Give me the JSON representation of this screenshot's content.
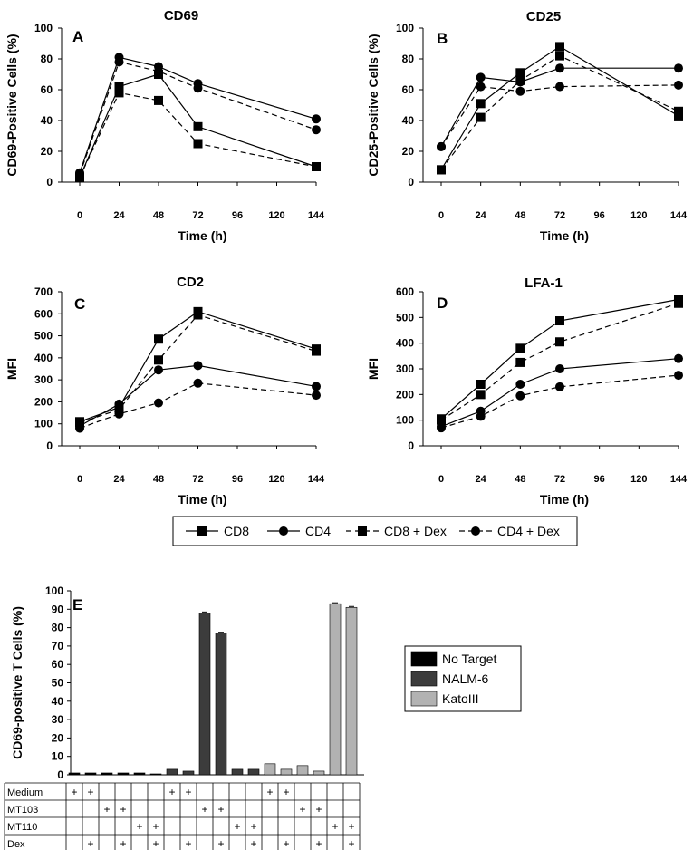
{
  "chart_data": [
    {
      "panel": "A",
      "type": "line",
      "title": "CD69",
      "xlabel": "Time (h)",
      "ylabel": "CD69-Positive Cells (%)",
      "x_ticks": [
        "0",
        "24",
        "48",
        "72",
        "96",
        "120",
        "144"
      ],
      "y_ticks": [
        "0",
        "20",
        "40",
        "60",
        "80",
        "100"
      ],
      "xlim": [
        0,
        144
      ],
      "ylim": [
        0,
        100
      ],
      "x": [
        0,
        24,
        48,
        72,
        144
      ],
      "series": [
        {
          "name": "CD8",
          "marker": "square",
          "dash": false,
          "values": [
            3,
            62,
            70,
            36,
            10
          ]
        },
        {
          "name": "CD4",
          "marker": "circle",
          "dash": false,
          "values": [
            6,
            81,
            75,
            64,
            41
          ]
        },
        {
          "name": "CD8 + Dex",
          "marker": "square",
          "dash": true,
          "values": [
            3,
            58,
            53,
            25,
            10
          ]
        },
        {
          "name": "CD4 + Dex",
          "marker": "circle",
          "dash": true,
          "values": [
            5,
            78,
            72,
            61,
            34
          ]
        }
      ]
    },
    {
      "panel": "B",
      "type": "line",
      "title": "CD25",
      "xlabel": "Time (h)",
      "ylabel": "CD25-Positive Cells (%)",
      "x_ticks": [
        "0",
        "24",
        "48",
        "72",
        "96",
        "120",
        "144"
      ],
      "y_ticks": [
        "0",
        "20",
        "40",
        "60",
        "80",
        "100"
      ],
      "xlim": [
        0,
        144
      ],
      "ylim": [
        0,
        100
      ],
      "x": [
        0,
        24,
        48,
        72,
        144
      ],
      "series": [
        {
          "name": "CD8",
          "marker": "square",
          "dash": false,
          "values": [
            8,
            51,
            71,
            88,
            43
          ]
        },
        {
          "name": "CD4",
          "marker": "circle",
          "dash": false,
          "values": [
            23,
            68,
            65,
            74,
            74
          ]
        },
        {
          "name": "CD8 + Dex",
          "marker": "square",
          "dash": true,
          "values": [
            8,
            42,
            66,
            82,
            46
          ]
        },
        {
          "name": "CD4 + Dex",
          "marker": "circle",
          "dash": true,
          "values": [
            23,
            62,
            59,
            62,
            63
          ]
        }
      ]
    },
    {
      "panel": "C",
      "type": "line",
      "title": "CD2",
      "xlabel": "Time (h)",
      "ylabel": "MFI",
      "x_ticks": [
        "0",
        "24",
        "48",
        "72",
        "96",
        "120",
        "144"
      ],
      "y_ticks": [
        "0",
        "100",
        "200",
        "300",
        "400",
        "500",
        "600",
        "700"
      ],
      "xlim": [
        0,
        144
      ],
      "ylim": [
        0,
        700
      ],
      "x": [
        0,
        24,
        48,
        72,
        144
      ],
      "series": [
        {
          "name": "CD8",
          "marker": "square",
          "dash": false,
          "values": [
            110,
            175,
            485,
            610,
            440
          ]
        },
        {
          "name": "CD4",
          "marker": "circle",
          "dash": false,
          "values": [
            90,
            190,
            345,
            365,
            270
          ]
        },
        {
          "name": "CD8 + Dex",
          "marker": "square",
          "dash": true,
          "values": [
            105,
            165,
            390,
            595,
            430
          ]
        },
        {
          "name": "CD4 + Dex",
          "marker": "circle",
          "dash": true,
          "values": [
            80,
            145,
            195,
            285,
            230
          ]
        }
      ]
    },
    {
      "panel": "D",
      "type": "line",
      "title": "LFA-1",
      "xlabel": "Time (h)",
      "ylabel": "MFI",
      "x_ticks": [
        "0",
        "24",
        "48",
        "72",
        "96",
        "120",
        "144"
      ],
      "y_ticks": [
        "0",
        "100",
        "200",
        "300",
        "400",
        "500",
        "600"
      ],
      "xlim": [
        0,
        144
      ],
      "ylim": [
        0,
        600
      ],
      "x": [
        0,
        24,
        48,
        72,
        144
      ],
      "series": [
        {
          "name": "CD8",
          "marker": "square",
          "dash": false,
          "values": [
            105,
            240,
            380,
            487,
            570
          ]
        },
        {
          "name": "CD4",
          "marker": "circle",
          "dash": false,
          "values": [
            75,
            135,
            240,
            300,
            340
          ]
        },
        {
          "name": "CD8 + Dex",
          "marker": "square",
          "dash": true,
          "values": [
            100,
            200,
            325,
            405,
            555
          ]
        },
        {
          "name": "CD4 + Dex",
          "marker": "circle",
          "dash": true,
          "values": [
            70,
            115,
            195,
            230,
            275
          ]
        }
      ]
    },
    {
      "panel": "E",
      "type": "bar",
      "title": "",
      "ylabel": "CD69-positive T Cells (%)",
      "y_ticks": [
        "0",
        "10",
        "20",
        "30",
        "40",
        "50",
        "60",
        "70",
        "80",
        "90",
        "100"
      ],
      "ylim": [
        0,
        100
      ],
      "groups": [
        {
          "name": "No Target",
          "color": "#000000",
          "values": [
            1,
            1,
            1,
            1,
            1,
            0.5
          ]
        },
        {
          "name": "NALM-6",
          "color": "#3c3c3c",
          "values": [
            3,
            2,
            88,
            77,
            3,
            3
          ]
        },
        {
          "name": "KatoIII",
          "color": "#b2b2b2",
          "values": [
            6,
            3,
            5,
            2,
            93,
            91
          ]
        }
      ],
      "legend": [
        "No Target",
        "NALM-6",
        "KatoIII"
      ],
      "table": {
        "rows": [
          "Medium",
          "MT103",
          "MT110",
          "Dex"
        ],
        "mark": "+",
        "columns": [
          [
            "Medium"
          ],
          [
            "Medium",
            "Dex"
          ],
          [
            "MT103"
          ],
          [
            "MT103",
            "Dex"
          ],
          [
            "MT110"
          ],
          [
            "MT110",
            "Dex"
          ],
          [
            "Medium"
          ],
          [
            "Medium",
            "Dex"
          ],
          [
            "MT103"
          ],
          [
            "MT103",
            "Dex"
          ],
          [
            "MT110"
          ],
          [
            "MT110",
            "Dex"
          ],
          [
            "Medium"
          ],
          [
            "Medium",
            "Dex"
          ],
          [
            "MT103"
          ],
          [
            "MT103",
            "Dex"
          ],
          [
            "MT110"
          ],
          [
            "MT110",
            "Dex"
          ]
        ]
      }
    }
  ],
  "legend": {
    "position": "center",
    "items": [
      {
        "name": "CD8",
        "marker": "square",
        "dash": false
      },
      {
        "name": "CD4",
        "marker": "circle",
        "dash": false
      },
      {
        "name": "CD8 + Dex",
        "marker": "square",
        "dash": true
      },
      {
        "name": "CD4 + Dex",
        "marker": "circle",
        "dash": true
      }
    ]
  }
}
